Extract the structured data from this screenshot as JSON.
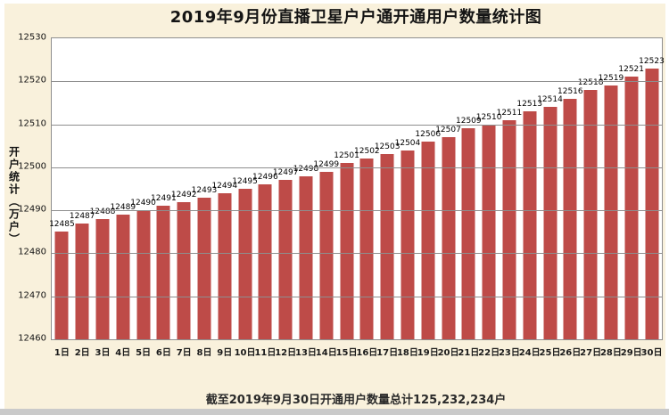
{
  "page": {
    "background_color": "#F9F1DC",
    "bottom_strip_color": "#CACACA"
  },
  "chart_data": {
    "type": "bar",
    "title": "2019年9月份直播卫星户户通开通用户数量统计图",
    "ylabel": "开户统计（万户）",
    "xlabel": "",
    "categories": [
      "1日",
      "2日",
      "3日",
      "4日",
      "5日",
      "6日",
      "7日",
      "8日",
      "9日",
      "10日",
      "11日",
      "12日",
      "13日",
      "14日",
      "15日",
      "16日",
      "17日",
      "18日",
      "19日",
      "20日",
      "21日",
      "22日",
      "23日",
      "24日",
      "25日",
      "26日",
      "27日",
      "28日",
      "29日",
      "30日"
    ],
    "values": [
      12485,
      12487,
      12488,
      12489,
      12490,
      12491,
      12492,
      12493,
      12494,
      12495,
      12496,
      12497,
      12498,
      12499,
      12501,
      12502,
      12503,
      12504,
      12506,
      12507,
      12509,
      12510,
      12511,
      12513,
      12514,
      12516,
      12518,
      12519,
      12521,
      12523
    ],
    "ylim": [
      12460,
      12530
    ],
    "yticks": [
      12460,
      12470,
      12480,
      12490,
      12500,
      12510,
      12520,
      12530
    ],
    "grid": true,
    "legend_position": "none",
    "bar_color": "#BE4B48",
    "gridline_color": "#8E8E8E"
  },
  "footer": {
    "note": "截至2019年9月30日开通用户数量总计125,232,234户"
  }
}
